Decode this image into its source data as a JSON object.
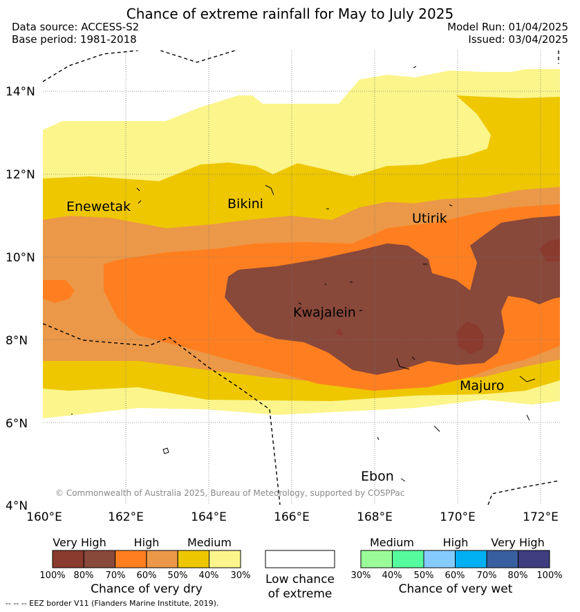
{
  "header": {
    "title": "Chance of extreme rainfall for May to July 2025",
    "data_source": "Data source: ACCESS-S2",
    "base_period": "Base period: 1981-2018",
    "model_run": "Model Run: 01/04/2025",
    "issued": "Issued: 03/04/2025"
  },
  "map": {
    "lon_ticks": [
      "160°E",
      "162°E",
      "164°E",
      "166°E",
      "168°E",
      "170°E",
      "172°E"
    ],
    "lat_ticks": [
      "14°N",
      "12°N",
      "10°N",
      "8°N",
      "6°N",
      "4°N"
    ],
    "places": [
      {
        "name": "Enewetak"
      },
      {
        "name": "Bikini"
      },
      {
        "name": "Utirik"
      },
      {
        "name": "Kwajalein"
      },
      {
        "name": "Majuro"
      },
      {
        "name": "Ebon"
      }
    ],
    "copyright": "© Commonwealth of Australia 2025, Bureau of Meteorology, supported by COSPPac",
    "colors": {
      "dry_100_80": "#8b3a2e",
      "dry_80_70": "#88483a",
      "dry_70_60": "#ff7f20",
      "dry_60_50": "#eb9848",
      "dry_50_40": "#eec700",
      "dry_40_30": "#fbf58b"
    }
  },
  "legend": {
    "dry": {
      "categories": [
        "Very High",
        "High",
        "Medium"
      ],
      "colors": [
        "#8b3a2e",
        "#88483a",
        "#ff7f20",
        "#eb9848",
        "#eec700",
        "#fbf58b"
      ],
      "ticks": [
        "100%",
        "80%",
        "70%",
        "60%",
        "50%",
        "40%",
        "30%"
      ],
      "title": "Chance of very dry"
    },
    "low": {
      "line1": "Low chance",
      "line2": "of extreme"
    },
    "wet": {
      "categories": [
        "Medium",
        "High",
        "Very High"
      ],
      "colors": [
        "#9afc99",
        "#55fb9d",
        "#86cbfd",
        "#00b0f2",
        "#385f9f",
        "#3d3d7f"
      ],
      "ticks": [
        "30%",
        "40%",
        "50%",
        "60%",
        "70%",
        "80%",
        "100%"
      ],
      "title": "Chance of very wet"
    }
  },
  "footer": "--  --  -- EEZ border V11 (Flanders Marine Institute, 2019)."
}
